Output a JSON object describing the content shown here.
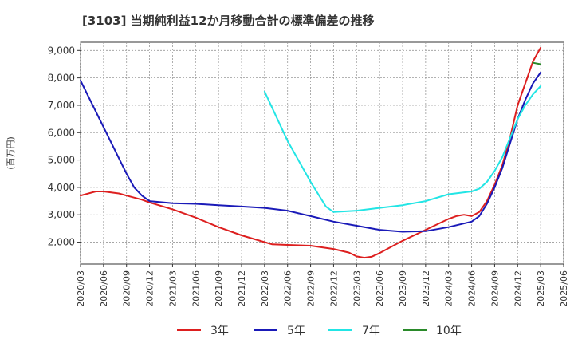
{
  "chart_data": {
    "type": "line",
    "title": "[3103]  当期純利益12か月移動合計の標準偏差の推移",
    "ylabel": "(百万円)",
    "xlabel": "",
    "ylim": [
      1200,
      9300
    ],
    "yticks": [
      2000,
      3000,
      4000,
      5000,
      6000,
      7000,
      8000,
      9000
    ],
    "ytick_labels": [
      "2,000",
      "3,000",
      "4,000",
      "5,000",
      "6,000",
      "7,000",
      "8,000",
      "9,000"
    ],
    "xticks": [
      "2020/03",
      "2020/06",
      "2020/09",
      "2020/12",
      "2021/03",
      "2021/06",
      "2021/09",
      "2021/12",
      "2022/03",
      "2022/06",
      "2022/09",
      "2022/12",
      "2023/03",
      "2023/06",
      "2023/09",
      "2023/12",
      "2024/03",
      "2024/06",
      "2024/09",
      "2024/12",
      "2025/03",
      "2025/06"
    ],
    "grid": true,
    "legend_position": "bottom",
    "series": [
      {
        "name": "3年",
        "color": "#dd1f1f",
        "points": [
          [
            "2020/03",
            3700
          ],
          [
            "2020/05",
            3850
          ],
          [
            "2020/06",
            3850
          ],
          [
            "2020/08",
            3780
          ],
          [
            "2020/09",
            3700
          ],
          [
            "2020/11",
            3550
          ],
          [
            "2020/12",
            3450
          ],
          [
            "2021/03",
            3200
          ],
          [
            "2021/06",
            2900
          ],
          [
            "2021/09",
            2550
          ],
          [
            "2021/12",
            2250
          ],
          [
            "2022/03",
            2000
          ],
          [
            "2022/04",
            1920
          ],
          [
            "2022/06",
            1900
          ],
          [
            "2022/09",
            1870
          ],
          [
            "2022/12",
            1750
          ],
          [
            "2023/02",
            1620
          ],
          [
            "2023/03",
            1480
          ],
          [
            "2023/04",
            1430
          ],
          [
            "2023/05",
            1470
          ],
          [
            "2023/06",
            1600
          ],
          [
            "2023/09",
            2050
          ],
          [
            "2023/12",
            2450
          ],
          [
            "2024/03",
            2850
          ],
          [
            "2024/04",
            2950
          ],
          [
            "2024/05",
            3000
          ],
          [
            "2024/06",
            2950
          ],
          [
            "2024/07",
            3100
          ],
          [
            "2024/08",
            3500
          ],
          [
            "2024/09",
            4100
          ],
          [
            "2024/10",
            4800
          ],
          [
            "2024/11",
            5800
          ],
          [
            "2024/12",
            7000
          ],
          [
            "2025/01",
            7800
          ],
          [
            "2025/02",
            8600
          ],
          [
            "2025/03",
            9100
          ]
        ]
      },
      {
        "name": "5年",
        "color": "#1a1ab8",
        "points": [
          [
            "2020/03",
            7900
          ],
          [
            "2020/06",
            6200
          ],
          [
            "2020/09",
            4500
          ],
          [
            "2020/10",
            4000
          ],
          [
            "2020/11",
            3700
          ],
          [
            "2020/12",
            3500
          ],
          [
            "2021/03",
            3420
          ],
          [
            "2021/06",
            3400
          ],
          [
            "2021/09",
            3350
          ],
          [
            "2021/12",
            3300
          ],
          [
            "2022/03",
            3250
          ],
          [
            "2022/06",
            3150
          ],
          [
            "2022/09",
            2950
          ],
          [
            "2022/12",
            2750
          ],
          [
            "2023/03",
            2600
          ],
          [
            "2023/06",
            2450
          ],
          [
            "2023/09",
            2380
          ],
          [
            "2023/12",
            2400
          ],
          [
            "2024/03",
            2550
          ],
          [
            "2024/06",
            2750
          ],
          [
            "2024/07",
            2950
          ],
          [
            "2024/08",
            3400
          ],
          [
            "2024/09",
            4000
          ],
          [
            "2024/10",
            4700
          ],
          [
            "2024/11",
            5600
          ],
          [
            "2024/12",
            6500
          ],
          [
            "2025/01",
            7200
          ],
          [
            "2025/02",
            7800
          ],
          [
            "2025/03",
            8200
          ]
        ]
      },
      {
        "name": "7年",
        "color": "#22e5e5",
        "points": [
          [
            "2022/03",
            7500
          ],
          [
            "2022/06",
            5700
          ],
          [
            "2022/09",
            4200
          ],
          [
            "2022/11",
            3300
          ],
          [
            "2022/12",
            3100
          ],
          [
            "2023/03",
            3150
          ],
          [
            "2023/06",
            3250
          ],
          [
            "2023/09",
            3350
          ],
          [
            "2023/12",
            3500
          ],
          [
            "2024/03",
            3750
          ],
          [
            "2024/06",
            3850
          ],
          [
            "2024/07",
            3950
          ],
          [
            "2024/08",
            4200
          ],
          [
            "2024/09",
            4600
          ],
          [
            "2024/10",
            5100
          ],
          [
            "2024/11",
            5800
          ],
          [
            "2024/12",
            6500
          ],
          [
            "2025/01",
            7000
          ],
          [
            "2025/02",
            7400
          ],
          [
            "2025/03",
            7700
          ]
        ]
      },
      {
        "name": "10年",
        "color": "#2a8a2a",
        "points": [
          [
            "2025/02",
            8550
          ],
          [
            "2025/03",
            8500
          ]
        ]
      }
    ]
  }
}
